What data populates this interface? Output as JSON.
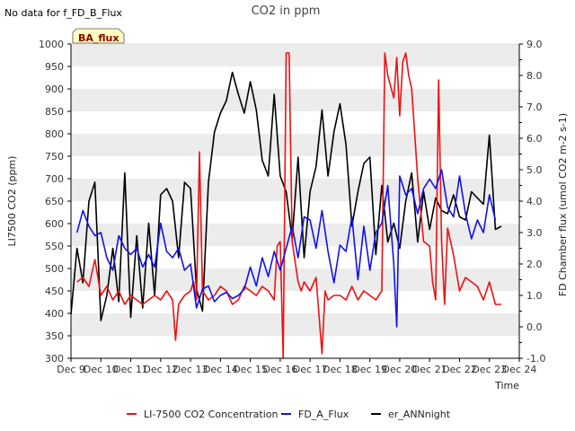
{
  "no_data_note": "No data for f_FD_B_Flux",
  "badge_label": "BA_flux",
  "colors": {
    "li7500": "#ee1111",
    "fd_a_flux": "#1111ee",
    "er_annnight": "#000000",
    "band": "#ececec",
    "badge_fill": "#ffffc0",
    "badge_border": "#555555"
  },
  "chart_data": {
    "type": "line",
    "title": "CO2 in ppm",
    "xlabel": "Time",
    "ylabel": "LI7500 CO2 (ppm)",
    "y2label": "FD Chamber flux (umol CO2 m-2 s-1)",
    "xlim": [
      9,
      24
    ],
    "ylim": [
      300,
      1000
    ],
    "y2lim": [
      -1.0,
      9.0
    ],
    "x_ticks": [
      {
        "value": 9,
        "label": "Dec 9"
      },
      {
        "value": 10,
        "label": "Dec 10"
      },
      {
        "value": 11,
        "label": "Dec 11"
      },
      {
        "value": 12,
        "label": "Dec 12"
      },
      {
        "value": 13,
        "label": "Dec 13"
      },
      {
        "value": 14,
        "label": "Dec 14"
      },
      {
        "value": 15,
        "label": "Dec 15"
      },
      {
        "value": 16,
        "label": "Dec 16"
      },
      {
        "value": 17,
        "label": "Dec 17"
      },
      {
        "value": 18,
        "label": "Dec 18"
      },
      {
        "value": 19,
        "label": "Dec 19"
      },
      {
        "value": 20,
        "label": "Dec 20"
      },
      {
        "value": 21,
        "label": "Dec 21"
      },
      {
        "value": 22,
        "label": "Dec 22"
      },
      {
        "value": 23,
        "label": "Dec 23"
      },
      {
        "value": 24,
        "label": "Dec 24"
      }
    ],
    "y_ticks": [
      "300",
      "350",
      "400",
      "450",
      "500",
      "550",
      "600",
      "650",
      "700",
      "750",
      "800",
      "850",
      "900",
      "950",
      "1000"
    ],
    "y2_ticks": [
      "-1.0",
      "0.0",
      "1.0",
      "2.0",
      "3.0",
      "4.0",
      "5.0",
      "6.0",
      "7.0",
      "8.0",
      "9.0"
    ],
    "grid": "horizontal bands",
    "legend_position": "bottom",
    "series": [
      {
        "name": "LI-7500 CO2 Concentration",
        "axis": "left",
        "x": [
          9.2,
          9.4,
          9.6,
          9.8,
          10.0,
          10.2,
          10.4,
          10.6,
          10.8,
          11.0,
          11.2,
          11.4,
          11.6,
          11.8,
          12.0,
          12.2,
          12.4,
          12.5,
          12.6,
          12.8,
          13.0,
          13.1,
          13.2,
          13.3,
          13.4,
          13.6,
          13.8,
          14.0,
          14.2,
          14.4,
          14.6,
          14.8,
          15.0,
          15.2,
          15.4,
          15.6,
          15.8,
          15.9,
          16.0,
          16.1,
          16.2,
          16.3,
          16.4,
          16.6,
          16.7,
          16.8,
          17.0,
          17.2,
          17.4,
          17.5,
          17.6,
          17.8,
          18.0,
          18.2,
          18.4,
          18.6,
          18.8,
          19.0,
          19.2,
          19.4,
          19.5,
          19.6,
          19.8,
          19.9,
          20.0,
          20.1,
          20.2,
          20.3,
          20.4,
          20.5,
          20.6,
          20.8,
          21.0,
          21.1,
          21.2,
          21.3,
          21.4,
          21.5,
          21.6,
          21.8,
          22.0,
          22.2,
          22.4,
          22.6,
          22.8,
          23.0,
          23.2,
          23.4
        ],
        "y": [
          470,
          480,
          460,
          520,
          440,
          460,
          430,
          450,
          420,
          440,
          430,
          420,
          430,
          440,
          430,
          450,
          430,
          340,
          420,
          440,
          450,
          470,
          430,
          760,
          450,
          430,
          440,
          460,
          450,
          420,
          430,
          460,
          450,
          440,
          460,
          450,
          430,
          550,
          560,
          300,
          980,
          980,
          560,
          470,
          450,
          470,
          450,
          480,
          310,
          450,
          430,
          440,
          440,
          430,
          460,
          430,
          450,
          440,
          430,
          450,
          980,
          930,
          880,
          970,
          840,
          960,
          980,
          930,
          900,
          800,
          700,
          560,
          550,
          470,
          430,
          920,
          560,
          420,
          590,
          530,
          450,
          480,
          470,
          460,
          430,
          470,
          420,
          420
        ]
      },
      {
        "name": "FD_A_Flux",
        "axis": "right",
        "x": [
          9.2,
          9.4,
          9.6,
          9.8,
          10.0,
          10.2,
          10.4,
          10.6,
          10.8,
          11.0,
          11.2,
          11.4,
          11.6,
          11.8,
          12.0,
          12.2,
          12.4,
          12.6,
          12.8,
          13.0,
          13.2,
          13.4,
          13.6,
          13.8,
          14.0,
          14.2,
          14.4,
          14.6,
          14.8,
          15.0,
          15.2,
          15.4,
          15.6,
          15.8,
          16.0,
          16.2,
          16.4,
          16.6,
          16.8,
          17.0,
          17.2,
          17.4,
          17.6,
          17.8,
          18.0,
          18.2,
          18.4,
          18.6,
          18.8,
          19.0,
          19.2,
          19.4,
          19.6,
          19.8,
          19.9,
          20.0,
          20.2,
          20.4,
          20.6,
          20.8,
          21.0,
          21.2,
          21.4,
          21.6,
          21.8,
          22.0,
          22.2,
          22.4,
          22.6,
          22.8,
          23.0,
          23.2
        ],
        "y": [
          3.0,
          3.7,
          3.2,
          2.9,
          3.0,
          2.2,
          1.8,
          2.9,
          2.5,
          2.3,
          2.5,
          1.9,
          2.3,
          1.9,
          3.3,
          2.4,
          2.2,
          2.5,
          1.8,
          2.0,
          0.6,
          1.2,
          1.3,
          0.8,
          1.0,
          1.1,
          0.9,
          1.0,
          1.2,
          1.9,
          1.3,
          2.2,
          1.6,
          2.4,
          1.8,
          2.5,
          3.2,
          2.2,
          3.5,
          3.4,
          2.5,
          3.7,
          2.4,
          1.4,
          2.6,
          2.4,
          3.5,
          1.5,
          3.2,
          1.8,
          3.0,
          3.3,
          4.5,
          2.0,
          0.0,
          4.8,
          4.2,
          4.4,
          3.6,
          4.4,
          4.7,
          4.4,
          5.0,
          3.8,
          3.5,
          4.8,
          3.6,
          2.8,
          3.4,
          3.0,
          4.2,
          3.4
        ]
      },
      {
        "name": "er_ANNnight",
        "axis": "right",
        "x": [
          9.0,
          9.2,
          9.4,
          9.6,
          9.8,
          10.0,
          10.2,
          10.4,
          10.6,
          10.8,
          11.0,
          11.2,
          11.4,
          11.6,
          11.8,
          12.0,
          12.2,
          12.4,
          12.6,
          12.8,
          13.0,
          13.2,
          13.4,
          13.6,
          13.8,
          14.0,
          14.2,
          14.4,
          14.6,
          14.8,
          15.0,
          15.2,
          15.4,
          15.6,
          15.8,
          16.0,
          16.2,
          16.4,
          16.6,
          16.8,
          17.0,
          17.2,
          17.4,
          17.6,
          17.8,
          18.0,
          18.2,
          18.4,
          18.6,
          18.8,
          19.0,
          19.2,
          19.4,
          19.6,
          19.8,
          20.0,
          20.2,
          20.4,
          20.6,
          20.8,
          21.0,
          21.2,
          21.4,
          21.6,
          21.8,
          22.0,
          22.2,
          22.4,
          22.6,
          22.8,
          23.0,
          23.2,
          23.4
        ],
        "y": [
          0.4,
          2.5,
          1.4,
          4.0,
          4.6,
          0.2,
          1.0,
          2.5,
          0.8,
          4.9,
          0.3,
          2.9,
          0.6,
          3.3,
          1.0,
          4.2,
          4.4,
          4.0,
          2.2,
          4.6,
          4.4,
          1.2,
          0.5,
          4.6,
          6.2,
          6.8,
          7.2,
          8.1,
          7.4,
          6.8,
          7.8,
          6.9,
          5.3,
          4.8,
          7.4,
          4.8,
          4.3,
          2.8,
          5.4,
          2.2,
          4.3,
          5.1,
          6.9,
          4.8,
          6.2,
          7.1,
          5.8,
          3.2,
          4.3,
          5.2,
          5.4,
          2.3,
          4.5,
          2.7,
          3.3,
          2.5,
          4.0,
          4.9,
          2.7,
          4.3,
          3.1,
          4.1,
          3.7,
          3.6,
          4.2,
          3.5,
          3.4,
          4.3,
          4.1,
          3.9,
          6.1,
          3.1,
          3.2
        ]
      }
    ]
  }
}
